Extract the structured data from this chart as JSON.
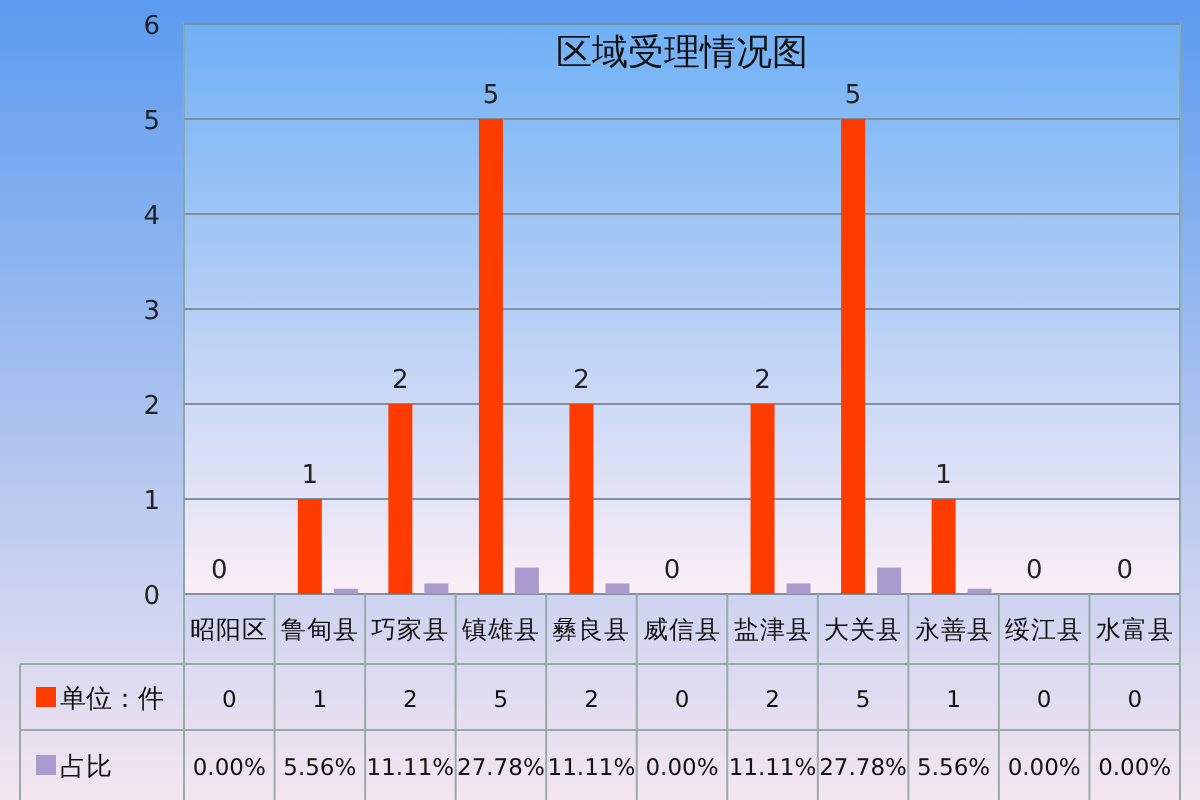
{
  "chart_data": {
    "type": "bar",
    "title": "区域受理情况图",
    "categories": [
      "昭阳区",
      "鲁甸县",
      "巧家县",
      "镇雄县",
      "彝良县",
      "威信县",
      "盐津县",
      "大关县",
      "永善县",
      "绥江县",
      "水富县"
    ],
    "series": [
      {
        "name": "单位：件",
        "color": "#ff3c00",
        "values": [
          0,
          1,
          2,
          5,
          2,
          0,
          2,
          5,
          1,
          0,
          0
        ]
      },
      {
        "name": "占比",
        "color": "#a99ccc",
        "values": [
          0,
          0.0556,
          0.1111,
          0.2778,
          0.1111,
          0,
          0.1111,
          0.2778,
          0.0556,
          0,
          0
        ],
        "value_labels": [
          "0.00%",
          "5.56%",
          "11.11%",
          "27.78%",
          "11.11%",
          "0.00%",
          "11.11%",
          "27.78%",
          "5.56%",
          "0.00%",
          "0.00%"
        ]
      }
    ],
    "annotations": [
      {
        "text": "0",
        "x": "昭阳区",
        "y": 0
      },
      {
        "text": "1",
        "x": "鲁甸县",
        "y": 1
      },
      {
        "text": "2",
        "x": "巧家县",
        "y": 2
      },
      {
        "text": "5",
        "x": "镇雄县",
        "y": 5
      },
      {
        "text": "2",
        "x": "彝良县",
        "y": 2
      },
      {
        "text": "0",
        "x": "威信县",
        "y": 0
      },
      {
        "text": "2",
        "x": "盐津县",
        "y": 2
      },
      {
        "text": "5",
        "x": "大关县",
        "y": 5
      },
      {
        "text": "1",
        "x": "永善县",
        "y": 1
      },
      {
        "text": "0",
        "x": "绥江县",
        "y": 0
      },
      {
        "text": "0",
        "x": "水富县",
        "y": 0
      }
    ],
    "ylim": [
      0,
      6
    ],
    "yticks": [
      0,
      1,
      2,
      3,
      4,
      5,
      6
    ],
    "grid": "y",
    "data_labels": true,
    "legend": "bottom left"
  }
}
